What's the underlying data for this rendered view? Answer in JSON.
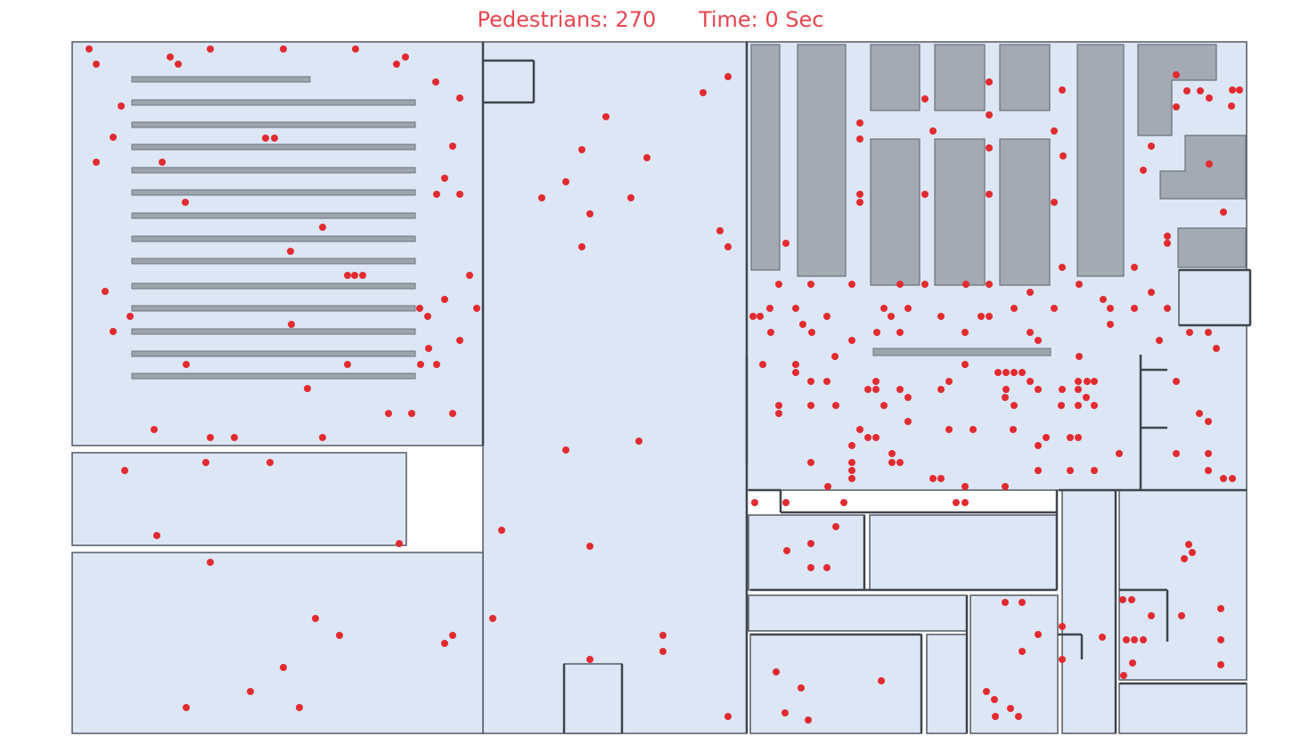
{
  "header": {
    "pedestrians_label": "Pedestrians: 270",
    "time_label": "Time: 0 Sec",
    "text_color": "#e8454f"
  },
  "simulation": {
    "pedestrian_count": 270,
    "time_sec": 0,
    "pedestrian_color": "#e22b30",
    "floor_color": "#dce6f5",
    "fixture_color": "#a3aab4"
  }
}
